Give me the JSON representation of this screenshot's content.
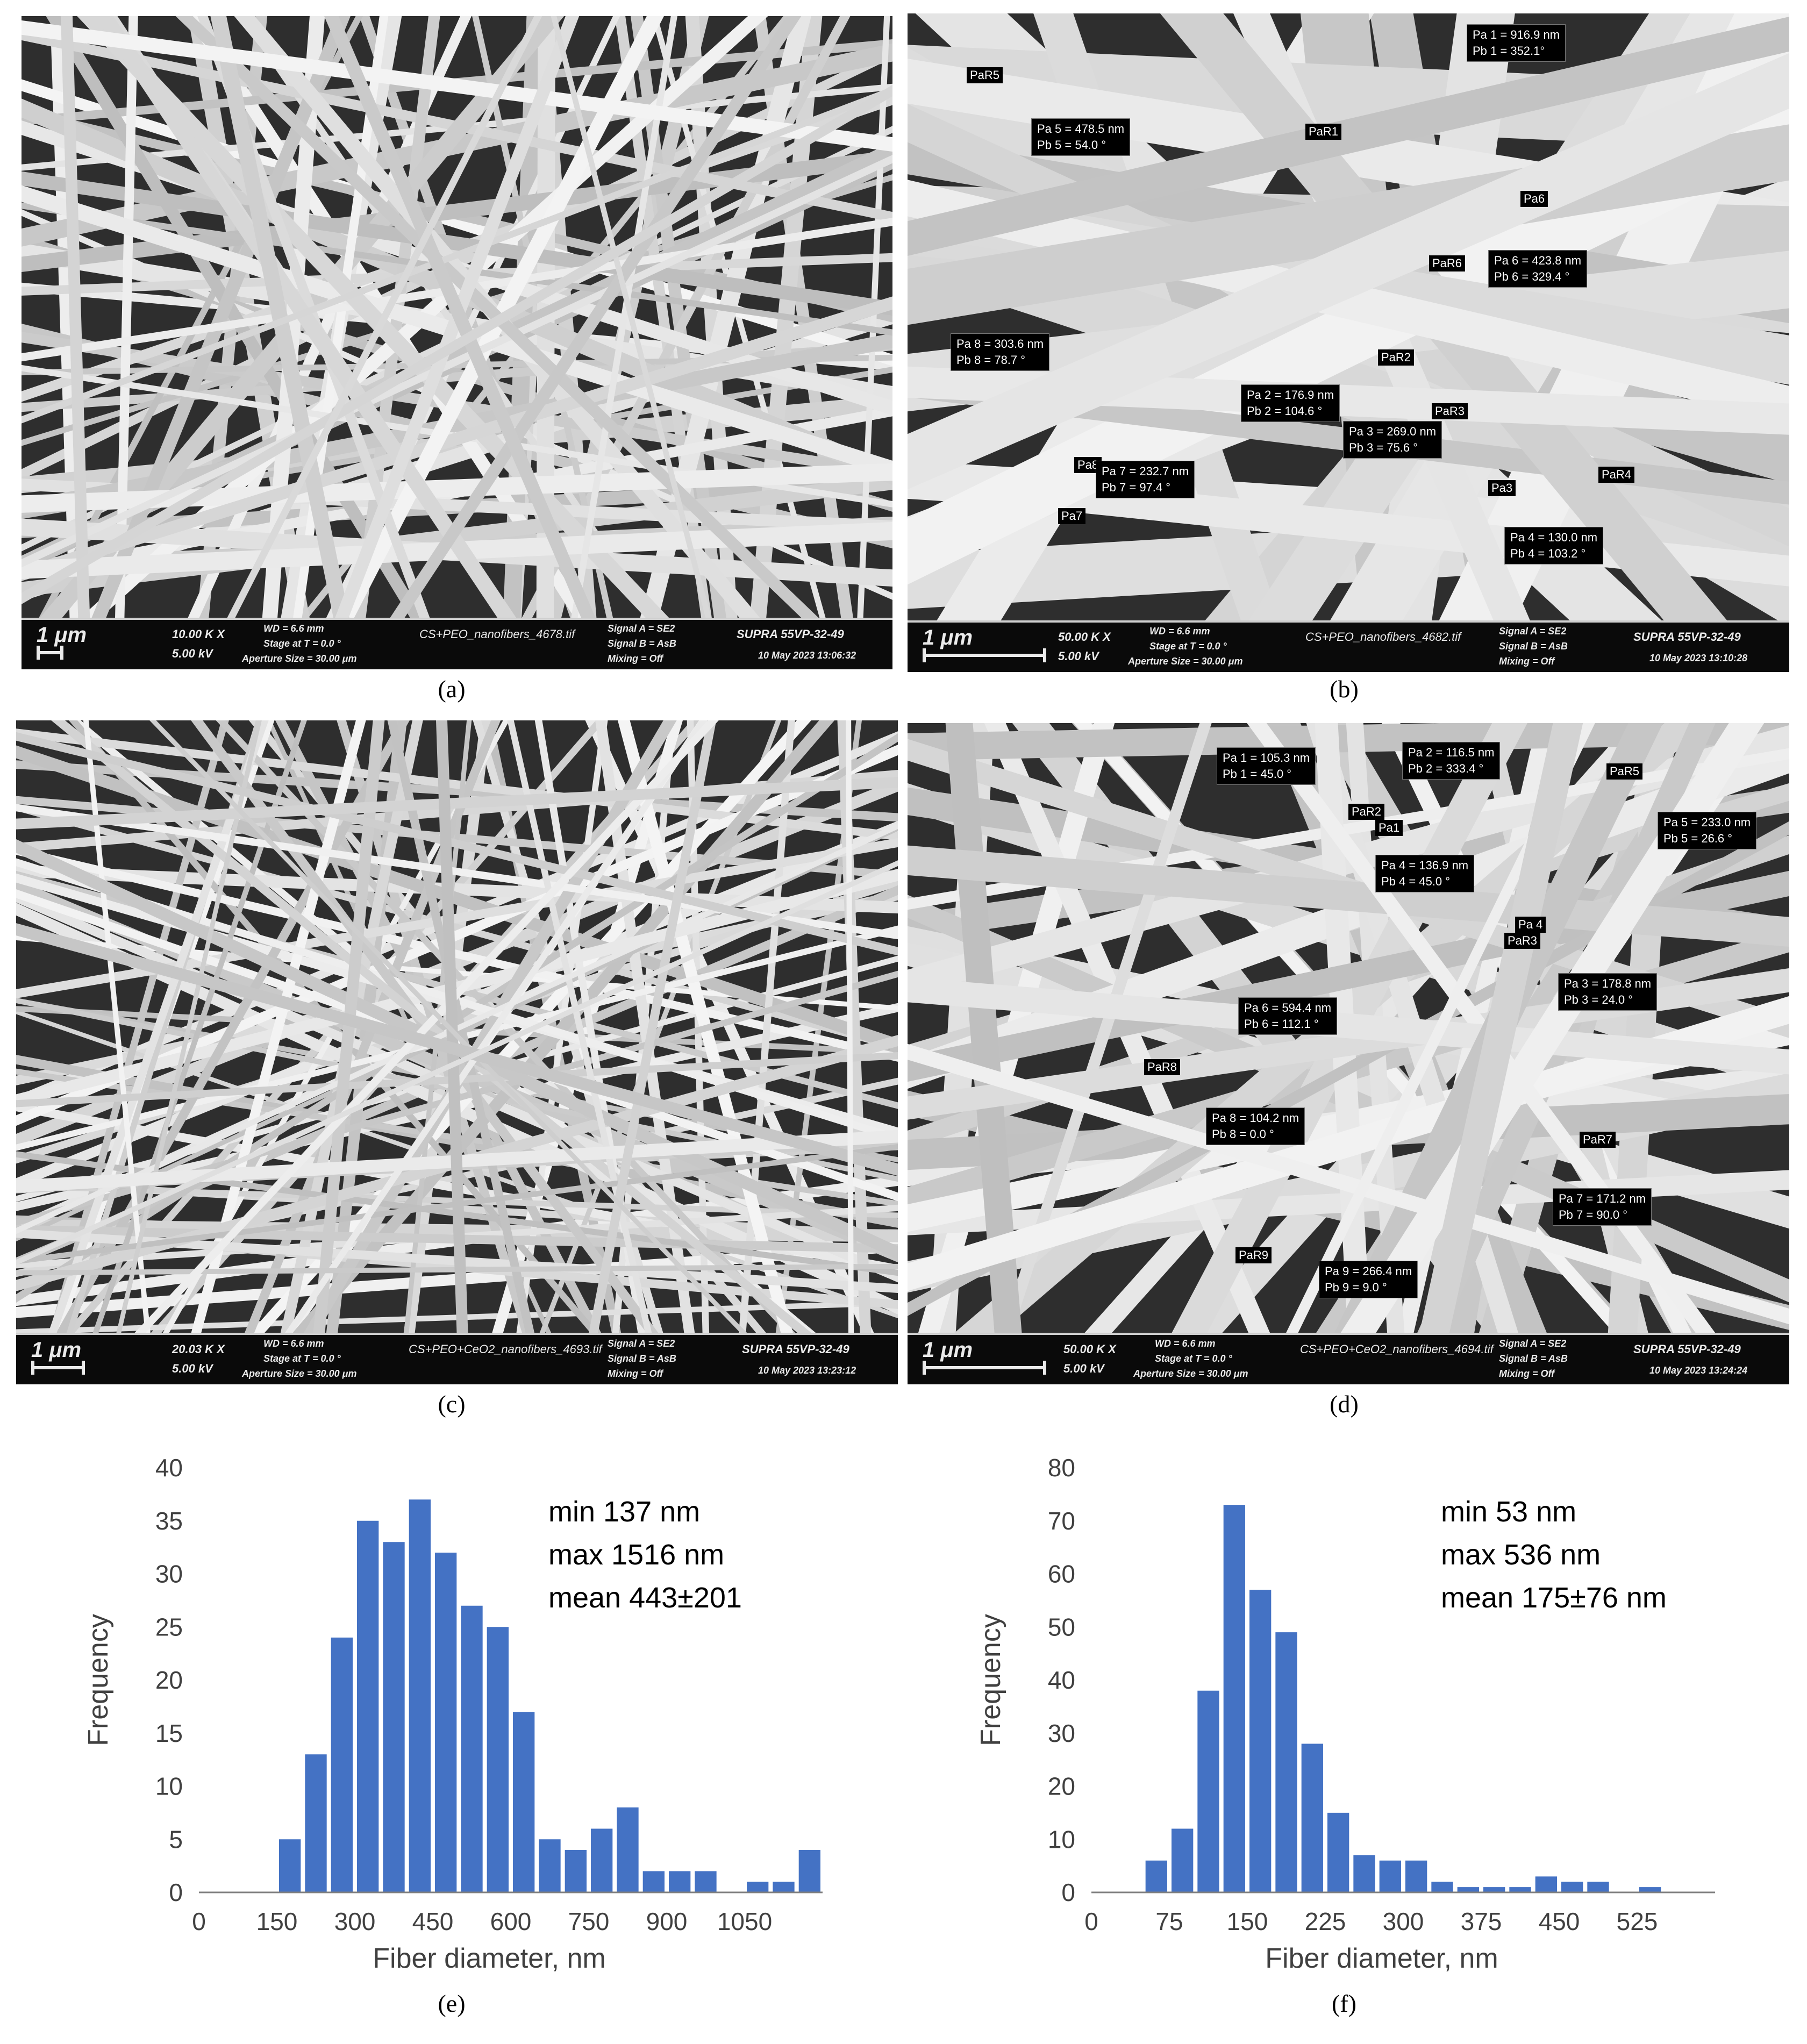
{
  "colors": {
    "bar": "#4472C4",
    "axis": "#7f7f7f",
    "sem_bg": "#3a3a3a",
    "fiber": "#e6e6e6"
  },
  "captions": {
    "a": "(a)",
    "b": "(b)",
    "c": "(c)",
    "d": "(d)",
    "e": "(e)",
    "f": "(f)"
  },
  "sem": {
    "a": {
      "scale": "1 μm",
      "mag": "10.00 K X",
      "kv": "5.00 kV",
      "wd": "WD = 6.6 mm",
      "stage": "Stage at T =  0.0 °",
      "aperture": "Aperture Size = 30.00 μm",
      "file": "CS+PEO_nanofibers_4678.tif",
      "signal_a": "Signal A = SE2",
      "signal_b": "Signal B = AsB",
      "mixing": "Mixing = Off",
      "model": "SUPRA 55VP-32-49",
      "date": "10 May 2023  13:06:32"
    },
    "b": {
      "scale": "1 μm",
      "mag": "50.00 K X",
      "kv": "5.00 kV",
      "wd": "WD = 6.6 mm",
      "stage": "Stage at T =  0.0 °",
      "aperture": "Aperture Size = 30.00 μm",
      "file": "CS+PEO_nanofibers_4682.tif",
      "signal_a": "Signal A = SE2",
      "signal_b": "Signal B = AsB",
      "mixing": "Mixing = Off",
      "model": "SUPRA 55VP-32-49",
      "date": "10 May 2023  13:10:28",
      "labels": [
        "Pa 1 = 916.9 nm\nPb 1 = 352.1°",
        "Pa 5 = 478.5 nm\nPb 5 = 54.0 °",
        "Pa 6 = 423.8 nm\nPb 6 = 329.4 °",
        "Pa 8 = 303.6 nm\nPb 8 = 78.7 °",
        "Pa 2 = 176.9 nm\nPb 2 = 104.6 °",
        "Pa 3 = 269.0 nm\nPb 3 = 75.6 °",
        "Pa 7 = 232.7 nm\nPb 7 = 97.4 °",
        "Pa 4 = 130.0 nm\nPb 4 = 103.2 °"
      ],
      "tags": [
        "PaR5",
        "PaR1",
        "Pa6",
        "PaR6",
        "PaR2",
        "PaR3",
        "Pa8",
        "Pa3",
        "PaR4",
        "Pa7"
      ]
    },
    "c": {
      "scale": "1 μm",
      "mag": "20.03 K X",
      "kv": "5.00 kV",
      "wd": "WD = 6.6 mm",
      "stage": "Stage at T =  0.0 °",
      "aperture": "Aperture Size = 30.00 μm",
      "file": "CS+PEO+CeO2_nanofibers_4693.tif",
      "signal_a": "Signal A = SE2",
      "signal_b": "Signal B = AsB",
      "mixing": "Mixing = Off",
      "model": "SUPRA 55VP-32-49",
      "date": "10 May 2023  13:23:12"
    },
    "d": {
      "scale": "1 μm",
      "mag": "50.00 K X",
      "kv": "5.00 kV",
      "wd": "WD = 6.6 mm",
      "stage": "Stage at T =  0.0 °",
      "aperture": "Aperture Size = 30.00 μm",
      "file": "CS+PEO+CeO2_nanofibers_4694.tif",
      "signal_a": "Signal A = SE2",
      "signal_b": "Signal B = AsB",
      "mixing": "Mixing = Off",
      "model": "SUPRA 55VP-32-49",
      "date": "10 May 2023  13:24:24",
      "labels": [
        "Pa 1 = 105.3 nm\nPb 1 = 45.0 °",
        "Pa 2 = 116.5 nm\nPb 2 = 333.4 °",
        "Pa 5 = 233.0 nm\nPb 5 = 26.6 °",
        "Pa 4 = 136.9 nm\nPb 4 = 45.0 °",
        "Pa 6 = 594.4 nm\nPb 6 = 112.1 °",
        "Pa 3 = 178.8 nm\nPb 3 = 24.0 °",
        "Pa 8 = 104.2 nm\nPb 8 = 0.0 °",
        "Pa 7 = 171.2 nm\nPb 7 = 90.0 °",
        "Pa 9 = 266.4 nm\nPb 9 = 9.0 °"
      ],
      "tags": [
        "PaR2",
        "Pa1",
        "PaR5",
        "Pa 4",
        "PaR3",
        "PaR8",
        "PaR7",
        "PaR9"
      ]
    }
  },
  "chart_data": [
    {
      "type": "bar",
      "xlabel": "Fiber diameter, nm",
      "ylabel": "Frequency",
      "ylim": [
        0,
        40
      ],
      "yticks": [
        0,
        5,
        10,
        15,
        20,
        25,
        30,
        35,
        40
      ],
      "xtick_labels": [
        "0",
        "150",
        "300",
        "450",
        "600",
        "750",
        "900",
        "1050"
      ],
      "bin_width": 50,
      "x": [
        25,
        75,
        125,
        175,
        225,
        275,
        325,
        375,
        425,
        475,
        525,
        575,
        625,
        675,
        725,
        775,
        825,
        875,
        925,
        975,
        1025,
        1075,
        1125,
        1175
      ],
      "values": [
        0,
        0,
        0,
        5,
        13,
        24,
        35,
        33,
        37,
        32,
        27,
        25,
        17,
        5,
        4,
        6,
        8,
        2,
        2,
        2,
        0,
        1,
        1,
        4
      ],
      "annotation": [
        "min 137 nm",
        "max 1516 nm",
        "mean 443±201"
      ],
      "grid": false
    },
    {
      "type": "bar",
      "xlabel": "Fiber diameter, nm",
      "ylabel": "Frequency",
      "ylim": [
        0,
        80
      ],
      "yticks": [
        0,
        10,
        20,
        30,
        40,
        50,
        60,
        70,
        80
      ],
      "xtick_labels": [
        "0",
        "75",
        "150",
        "225",
        "300",
        "375",
        "450",
        "525"
      ],
      "bin_width": 25,
      "x": [
        12.5,
        37.5,
        62.5,
        87.5,
        112.5,
        137.5,
        162.5,
        187.5,
        212.5,
        237.5,
        262.5,
        287.5,
        312.5,
        337.5,
        362.5,
        387.5,
        412.5,
        437.5,
        462.5,
        487.5,
        512.5,
        537.5,
        562.5,
        587.5
      ],
      "values": [
        0,
        0,
        6,
        12,
        38,
        73,
        57,
        49,
        28,
        15,
        7,
        6,
        6,
        2,
        1,
        1,
        1,
        3,
        2,
        2,
        0,
        1,
        0,
        0
      ],
      "annotation": [
        "min 53 nm",
        "max 536 nm",
        "mean 175±76 nm"
      ],
      "grid": false
    }
  ]
}
